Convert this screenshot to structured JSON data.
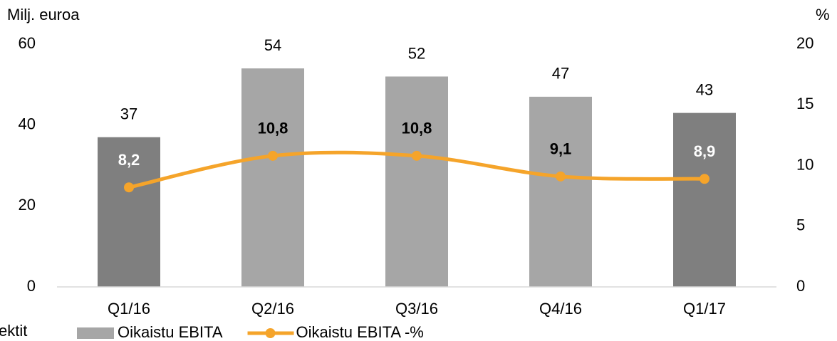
{
  "chart_data": {
    "type": "bar_line",
    "y_axis_label": "Milj. euroa",
    "y2_axis_label": "%",
    "note": "ektit",
    "categories": [
      "Q1/16",
      "Q2/16",
      "Q3/16",
      "Q4/16",
      "Q1/17"
    ],
    "series": [
      {
        "name": "Oikaistu EBITA",
        "type": "bar",
        "color": "#a6a6a6",
        "colors": [
          "#7f7f7f",
          "#a6a6a6",
          "#a6a6a6",
          "#a6a6a6",
          "#7f7f7f"
        ],
        "values": [
          37,
          54,
          52,
          47,
          43
        ]
      },
      {
        "name": "Oikaistu EBITA -%",
        "type": "line",
        "axis": "y2",
        "color": "#f5a42a",
        "values": [
          8.2,
          10.8,
          10.8,
          9.1,
          8.9
        ],
        "value_labels": [
          "8,2",
          "10,8",
          "10,8",
          "9,1",
          "8,9"
        ],
        "value_label_colors": [
          "#ffffff",
          "#000000",
          "#000000",
          "#000000",
          "#ffffff"
        ]
      }
    ],
    "ylim": [
      0,
      60
    ],
    "yticks": [
      0,
      20,
      40,
      60
    ],
    "y2lim": [
      0,
      20
    ],
    "y2ticks": [
      0,
      5,
      10,
      15,
      20
    ],
    "grid": false
  }
}
